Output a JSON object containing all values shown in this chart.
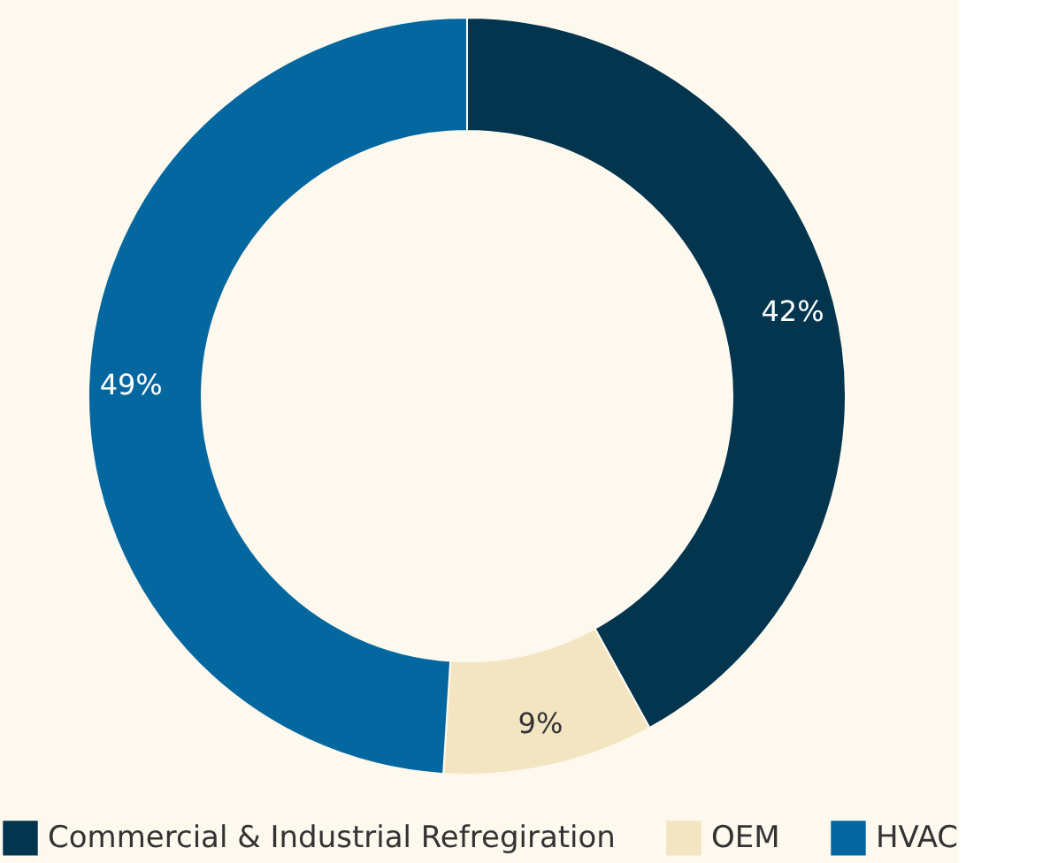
{
  "chart_data": {
    "type": "donut",
    "categories": [
      "Commercial & Industrial Refregiration",
      "OEM",
      "HVAC"
    ],
    "values": [
      42,
      9,
      49
    ],
    "colors": [
      "#03354f",
      "#f3e5c1",
      "#05679f"
    ],
    "value_labels": [
      "42%",
      "9%",
      "49%"
    ],
    "legend": "bottom"
  }
}
